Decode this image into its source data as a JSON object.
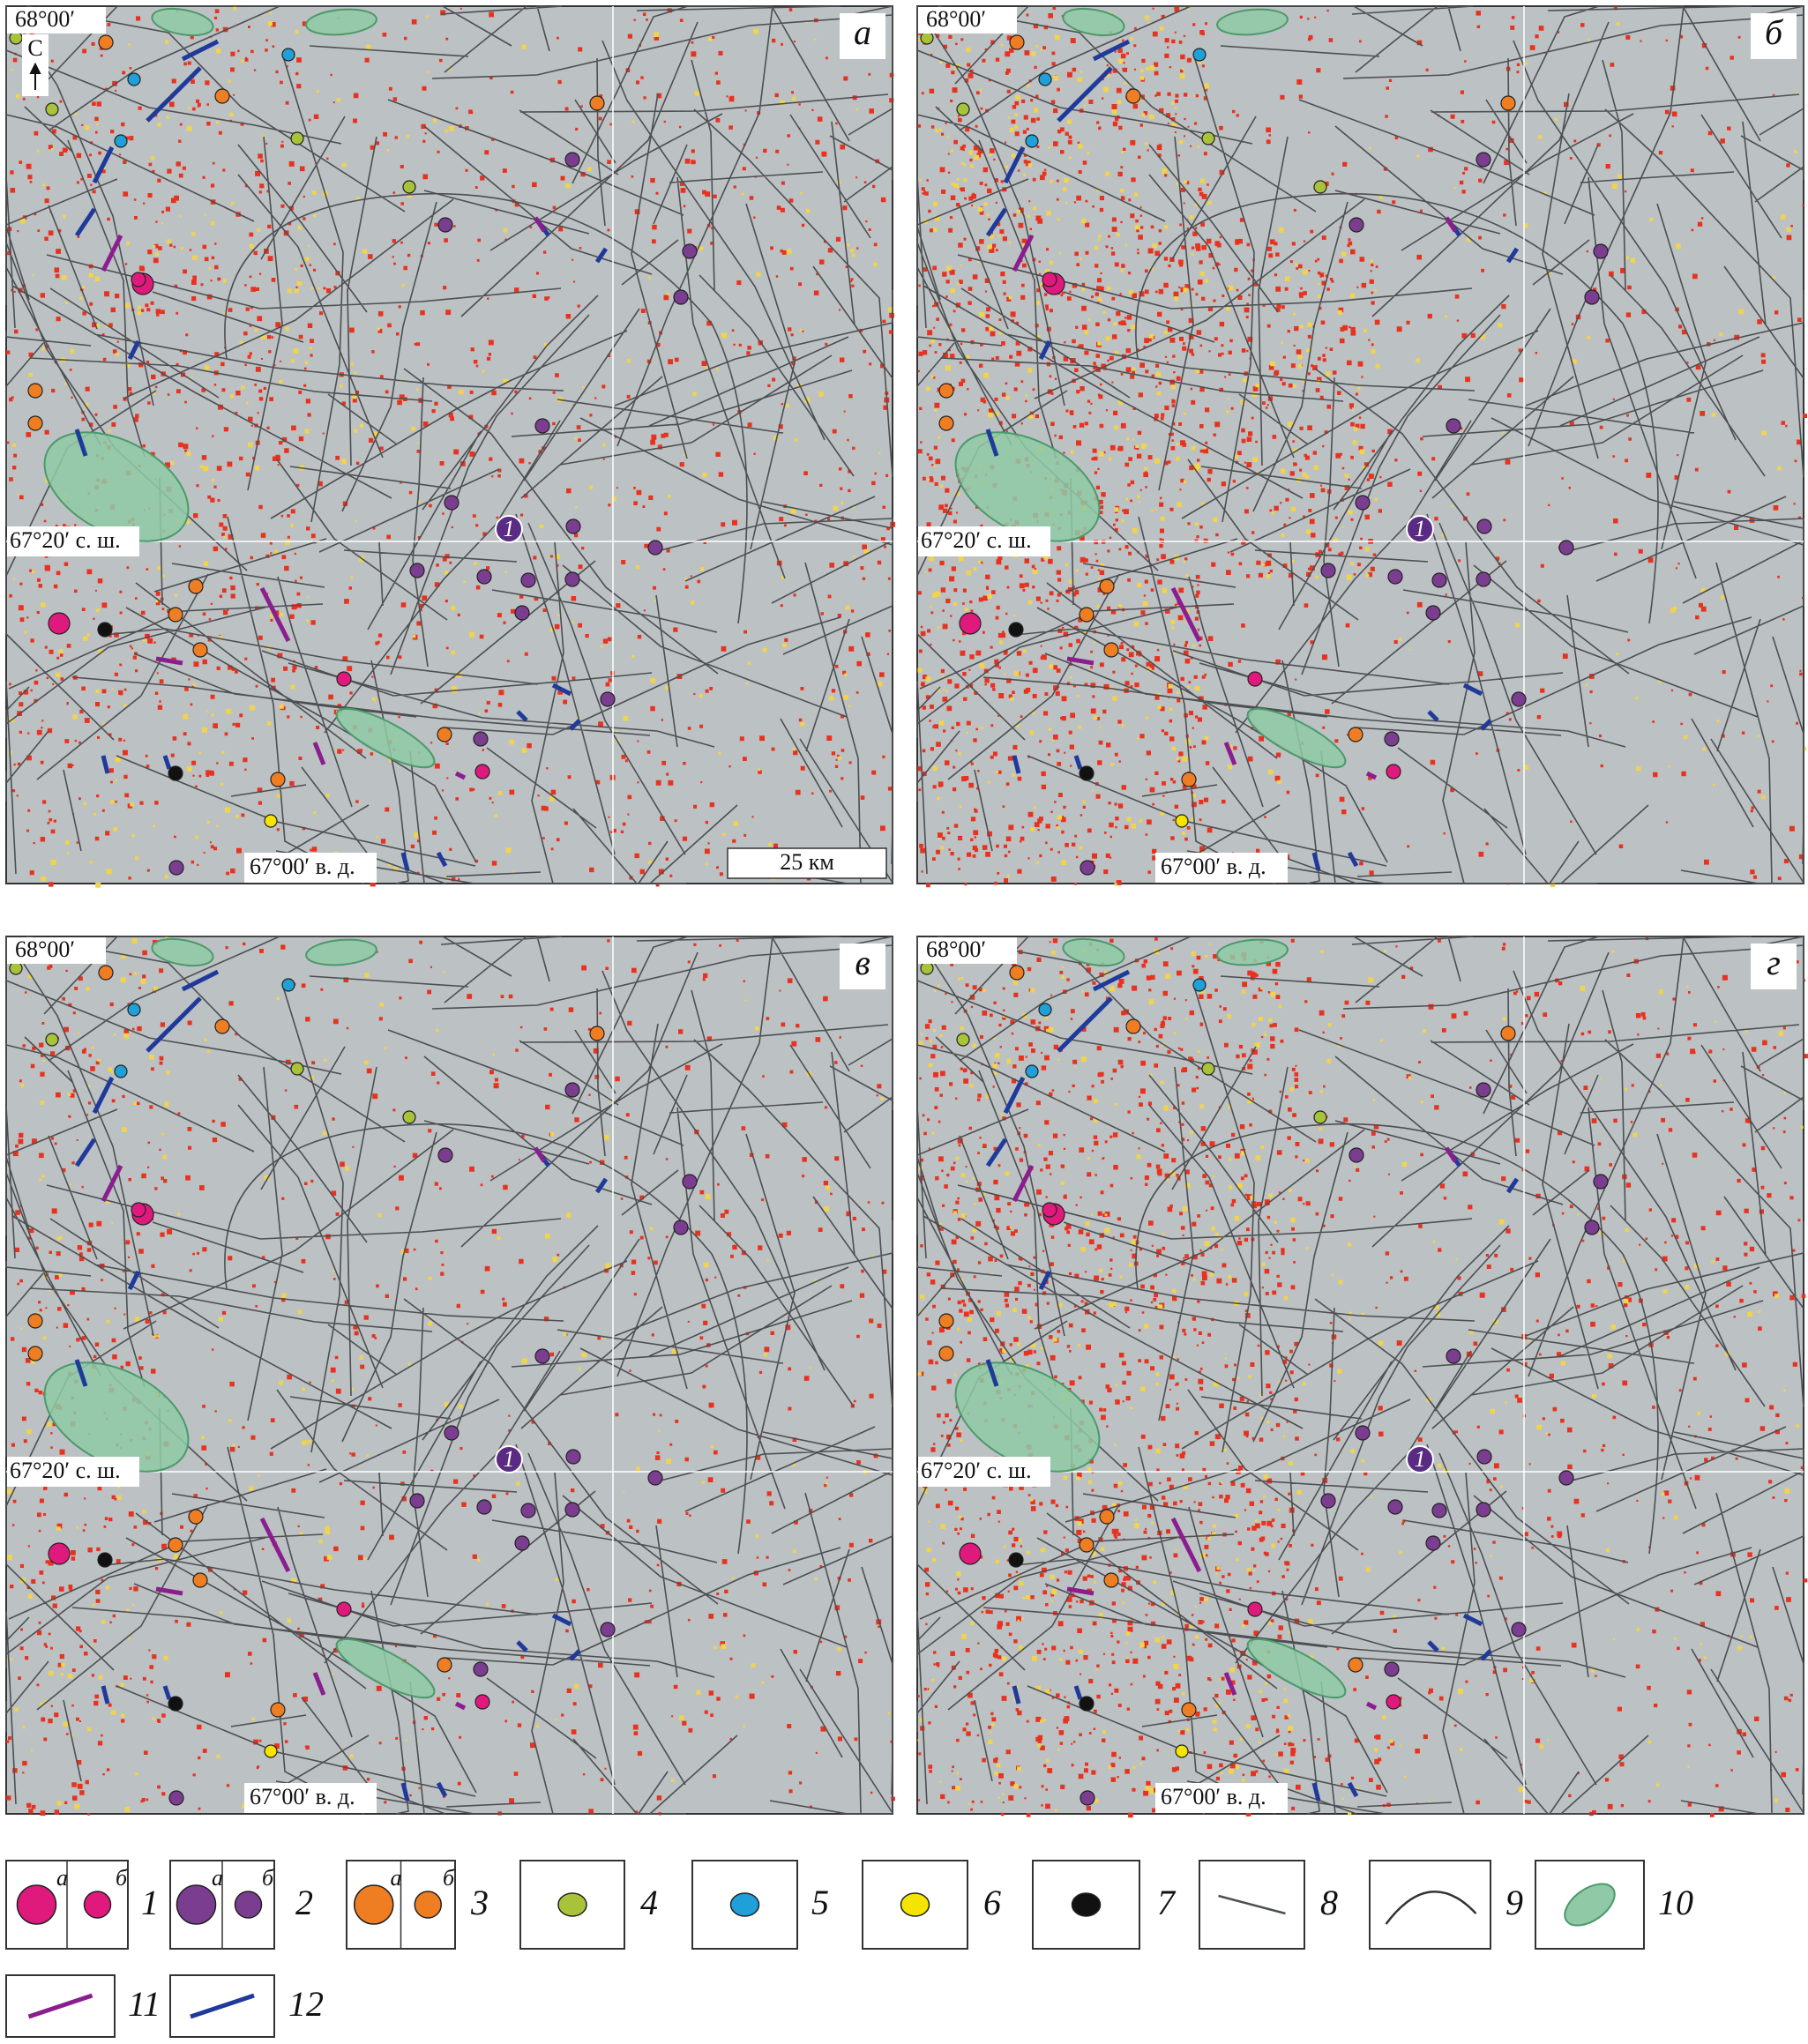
{
  "panels": [
    {
      "letter": "а",
      "lat_top": "68°00′",
      "lat_mid": "67°20′ с. ш.",
      "lon": "67°00′ в. д.",
      "site": "1",
      "north": "С",
      "scale_bar": "25 км"
    },
    {
      "letter": "б",
      "lat_top": "68°00′",
      "lat_mid": "67°20′ с. ш.",
      "lon": "67°00′ в. д.",
      "site": "1"
    },
    {
      "letter": "в",
      "lat_top": "68°00′",
      "lat_mid": "67°20′ с. ш.",
      "lon": "67°00′ в. д.",
      "site": "1"
    },
    {
      "letter": "г",
      "lat_top": "68°00′",
      "lat_mid": "67°20′ с. ш.",
      "lon": "67°00′ в. д.",
      "site": "1"
    }
  ],
  "legend": [
    {
      "number": "1",
      "sub": [
        "а",
        "б"
      ]
    },
    {
      "number": "2",
      "sub": [
        "а",
        "б"
      ]
    },
    {
      "number": "3",
      "sub": [
        "а",
        "б"
      ]
    },
    {
      "number": "4"
    },
    {
      "number": "5"
    },
    {
      "number": "6"
    },
    {
      "number": "7"
    },
    {
      "number": "8"
    },
    {
      "number": "9"
    },
    {
      "number": "10"
    },
    {
      "number": "11"
    },
    {
      "number": "12"
    }
  ]
}
